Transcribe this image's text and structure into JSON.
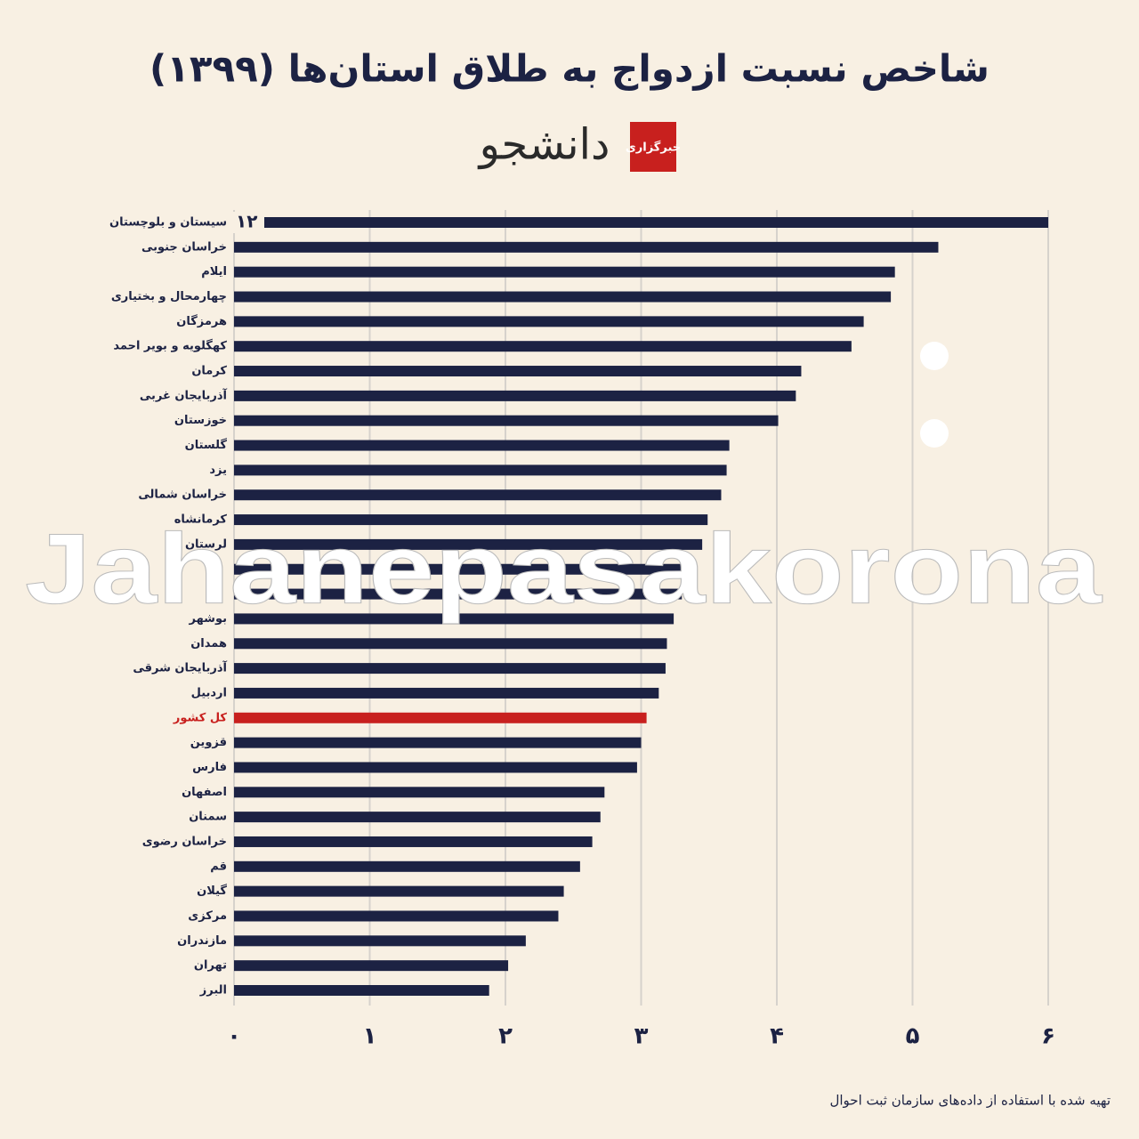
{
  "chart_data": {
    "type": "bar",
    "orientation": "horizontal",
    "title": "شاخص نسبت ازدواج به طلاق استان‌ها (۱۳۹۹)",
    "logo": {
      "badge": "خبرگزاری",
      "name": "دانشجو"
    },
    "source": "تهیه شده با استفاده از داده‌های سازمان ثبت احوال",
    "watermark": "Jahanepasakorona",
    "categories": [
      "سیستان و بلوچستان",
      "خراسان جنوبی",
      "ایلام",
      "چهارمحال و بختیاری",
      "هرمزگان",
      "کهگلویه و بویر احمد",
      "کرمان",
      "آذربایجان غربی",
      "خوزستان",
      "گلستان",
      "یزد",
      "خراسان شمالی",
      "کرمانشاه",
      "لرستان",
      null,
      null,
      "بوشهر",
      "همدان",
      "آذربایجان شرقی",
      "اردبیل",
      "کل کشور",
      "قزوین",
      "فارس",
      "اصفهان",
      "سمنان",
      "خراسان رضوی",
      "قم",
      "گیلان",
      "مرکزی",
      "مازندران",
      "تهران",
      "البرز"
    ],
    "values": [
      12,
      5.19,
      4.87,
      4.84,
      4.64,
      4.55,
      4.18,
      4.14,
      4.01,
      3.65,
      3.63,
      3.59,
      3.49,
      3.45,
      3.35,
      3.3,
      3.24,
      3.19,
      3.18,
      3.13,
      3.04,
      3.0,
      2.97,
      2.73,
      2.7,
      2.64,
      2.55,
      2.43,
      2.39,
      2.15,
      2.02,
      1.88
    ],
    "value_labels": [
      "۱۲",
      null,
      null,
      null,
      null,
      null,
      null,
      null,
      null,
      null,
      null,
      null,
      null,
      null,
      null,
      null,
      null,
      null,
      null,
      null,
      null,
      null,
      null,
      null,
      null,
      null,
      null,
      null,
      null,
      null,
      null,
      null
    ],
    "colors": [
      "#1c2243",
      "#1c2243",
      "#1c2243",
      "#1c2243",
      "#1c2243",
      "#1c2243",
      "#1c2243",
      "#1c2243",
      "#1c2243",
      "#1c2243",
      "#1c2243",
      "#1c2243",
      "#1c2243",
      "#1c2243",
      "#1c2243",
      "#1c2243",
      "#1c2243",
      "#1c2243",
      "#1c2243",
      "#1c2243",
      "#c8201e",
      "#1c2243",
      "#1c2243",
      "#1c2243",
      "#1c2243",
      "#1c2243",
      "#1c2243",
      "#1c2243",
      "#1c2243",
      "#1c2243",
      "#1c2243",
      "#1c2243"
    ],
    "xlim": [
      0,
      6
    ],
    "xticks": [
      {
        "value": 0,
        "label": "۰"
      },
      {
        "value": 1,
        "label": "۱"
      },
      {
        "value": 2,
        "label": "۲"
      },
      {
        "value": 3,
        "label": "۳"
      },
      {
        "value": 4,
        "label": "۴"
      },
      {
        "value": 5,
        "label": "۵"
      },
      {
        "value": 6,
        "label": "۶"
      }
    ],
    "grid": true
  }
}
